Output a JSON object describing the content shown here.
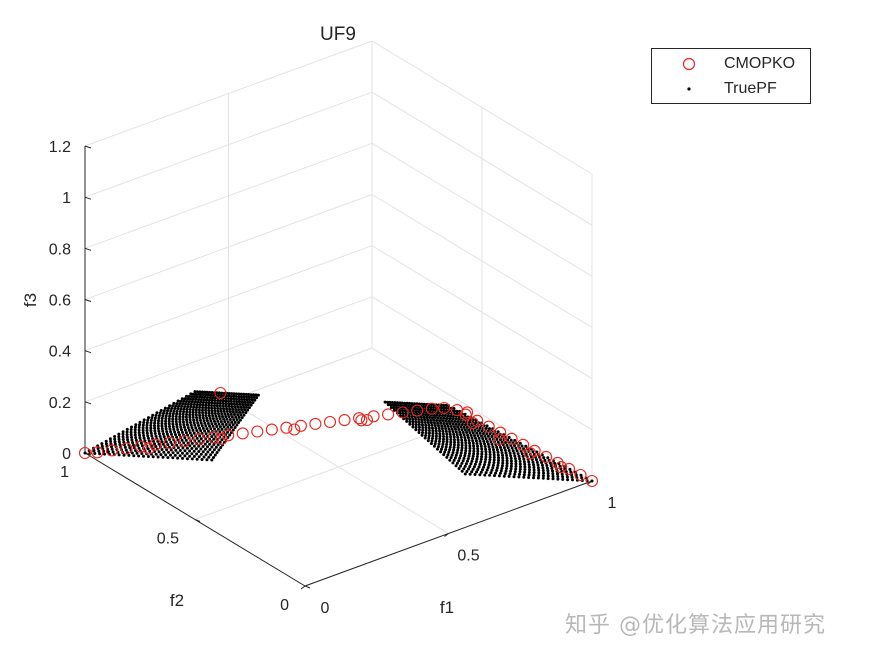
{
  "chart_data": {
    "type": "scatter3d",
    "title": "UF9",
    "xlabel": "f1",
    "ylabel": "f2",
    "zlabel": "f3",
    "xlim": [
      0,
      1
    ],
    "ylim": [
      0,
      1
    ],
    "zlim": [
      0,
      1.2
    ],
    "x_ticks": [
      "0",
      "0.5",
      "1"
    ],
    "y_ticks": [
      "0",
      "0.5",
      "1"
    ],
    "z_ticks": [
      "0",
      "0.2",
      "0.4",
      "0.6",
      "0.8",
      "1",
      "1.2"
    ],
    "grid": true,
    "legend_position": "top-right",
    "series": [
      {
        "name": "CMOPKO",
        "marker": "open-circle",
        "color": "#e8241c",
        "description_points": "obtained solutions clustered along both boundary lines of the true front, with a few outliers near f3 ≈ 0.4",
        "points": [
          [
            0.0,
            1.0,
            0.0
          ],
          [
            0.02,
            0.97,
            0.01
          ],
          [
            0.04,
            0.93,
            0.03
          ],
          [
            0.06,
            0.89,
            0.05
          ],
          [
            0.08,
            0.85,
            0.07
          ],
          [
            0.1,
            0.81,
            0.09
          ],
          [
            0.12,
            0.77,
            0.11
          ],
          [
            0.14,
            0.73,
            0.13
          ],
          [
            0.16,
            0.69,
            0.15
          ],
          [
            0.18,
            0.65,
            0.17
          ],
          [
            0.2,
            0.61,
            0.19
          ],
          [
            0.22,
            0.57,
            0.21
          ],
          [
            0.24,
            0.53,
            0.23
          ],
          [
            0.26,
            0.49,
            0.25
          ],
          [
            0.28,
            0.45,
            0.27
          ],
          [
            0.3,
            0.41,
            0.29
          ],
          [
            0.32,
            0.37,
            0.31
          ],
          [
            0.34,
            0.33,
            0.33
          ],
          [
            0.36,
            0.29,
            0.35
          ],
          [
            0.38,
            0.25,
            0.37
          ],
          [
            0.4,
            0.21,
            0.39
          ],
          [
            0.42,
            0.17,
            0.41
          ],
          [
            0.44,
            0.13,
            0.43
          ],
          [
            0.46,
            0.09,
            0.45
          ],
          [
            0.48,
            0.05,
            0.47
          ],
          [
            0.5,
            0.02,
            0.48
          ],
          [
            0.53,
            0.0,
            0.47
          ],
          [
            0.56,
            0.0,
            0.44
          ],
          [
            0.6,
            0.0,
            0.4
          ],
          [
            0.64,
            0.0,
            0.36
          ],
          [
            0.68,
            0.0,
            0.32
          ],
          [
            0.72,
            0.0,
            0.28
          ],
          [
            0.76,
            0.0,
            0.24
          ],
          [
            0.8,
            0.0,
            0.2
          ],
          [
            0.84,
            0.0,
            0.16
          ],
          [
            0.88,
            0.0,
            0.12
          ],
          [
            0.92,
            0.0,
            0.08
          ],
          [
            0.96,
            0.0,
            0.04
          ],
          [
            1.0,
            0.0,
            0.0
          ],
          [
            0.6,
            0.02,
            0.38
          ],
          [
            0.7,
            0.03,
            0.27
          ],
          [
            0.8,
            0.02,
            0.18
          ],
          [
            0.9,
            0.01,
            0.09
          ],
          [
            0.1,
            0.84,
            0.06
          ],
          [
            0.2,
            0.64,
            0.16
          ],
          [
            0.3,
            0.44,
            0.26
          ],
          [
            0.4,
            0.24,
            0.36
          ],
          [
            0.05,
            0.45,
            0.5
          ],
          [
            0.35,
            0.2,
            0.4
          ],
          [
            0.58,
            0.02,
            0.43
          ]
        ]
      },
      {
        "name": "TruePF",
        "marker": "dot",
        "color": "#000000",
        "description_points": "two planar regions of the UF9 Pareto front"
      }
    ]
  },
  "watermark": "知乎 @优化算法应用研究"
}
